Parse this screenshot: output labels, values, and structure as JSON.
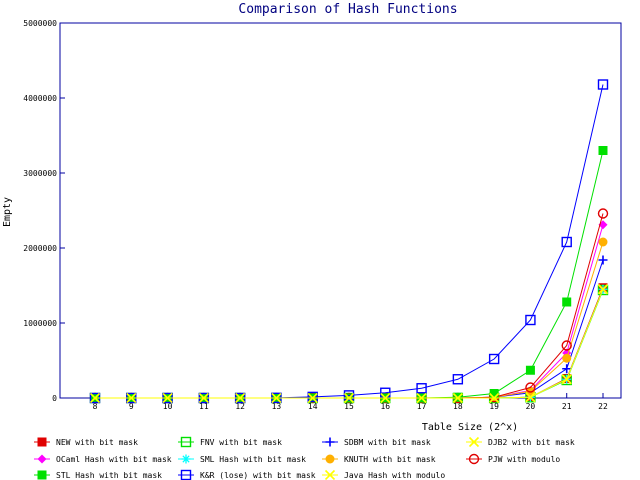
{
  "chart_data": {
    "type": "line",
    "title": "Comparison of Hash Functions",
    "xlabel": "Table Size (2^x)",
    "ylabel": "Empty",
    "x": [
      8,
      9,
      10,
      11,
      12,
      13,
      14,
      15,
      16,
      17,
      18,
      19,
      20,
      21,
      22
    ],
    "x_tick_labels": [
      "8",
      "9",
      "10",
      "11",
      "12",
      "13",
      "14",
      "15",
      "16",
      "17",
      "18",
      "19",
      "20",
      "21",
      "22"
    ],
    "y_ticks": [
      0,
      1000000,
      2000000,
      3000000,
      4000000,
      5000000
    ],
    "y_tick_labels": [
      "0",
      "1000000",
      "2000000",
      "3000000",
      "4000000",
      "5000000"
    ],
    "ylim": [
      0,
      5000000
    ],
    "legend_placement": "bottom",
    "series": [
      {
        "name": "NEW with bit mask",
        "color": "#e00000",
        "marker": "filled-square",
        "values": [
          0,
          0,
          0,
          0,
          0,
          0,
          0,
          0,
          0,
          0,
          0,
          0,
          10000,
          260000,
          1470000
        ]
      },
      {
        "name": "FNV with bit mask",
        "color": "#00e000",
        "marker": "open-square",
        "values": [
          0,
          0,
          0,
          0,
          0,
          0,
          0,
          0,
          0,
          0,
          0,
          0,
          10000,
          240000,
          1440000
        ]
      },
      {
        "name": "SDBM with bit mask",
        "color": "#0000ff",
        "marker": "plus",
        "values": [
          0,
          0,
          0,
          0,
          0,
          0,
          0,
          0,
          0,
          0,
          0,
          10000,
          70000,
          390000,
          1840000
        ]
      },
      {
        "name": "DJB2 with bit mask",
        "color": "#ffff00",
        "marker": "cross",
        "values": [
          0,
          0,
          0,
          0,
          0,
          0,
          0,
          0,
          0,
          0,
          0,
          0,
          10000,
          250000,
          1450000
        ]
      },
      {
        "name": "OCaml Hash with bit mask",
        "color": "#ff00ff",
        "marker": "filled-diamond",
        "values": [
          0,
          0,
          0,
          0,
          0,
          0,
          0,
          0,
          0,
          0,
          0,
          10000,
          100000,
          600000,
          2310000
        ]
      },
      {
        "name": "SML Hash with bit mask",
        "color": "#00ffff",
        "marker": "star",
        "values": [
          0,
          0,
          0,
          0,
          0,
          0,
          0,
          0,
          0,
          0,
          0,
          0,
          10000,
          250000,
          1450000
        ]
      },
      {
        "name": "KNUTH with bit mask",
        "color": "#ffb000",
        "marker": "filled-circle",
        "values": [
          0,
          0,
          0,
          0,
          0,
          0,
          0,
          0,
          0,
          0,
          0,
          10000,
          90000,
          530000,
          2080000
        ]
      },
      {
        "name": "PJW with modulo",
        "color": "#e00000",
        "marker": "open-circle",
        "values": [
          0,
          0,
          0,
          0,
          0,
          0,
          0,
          0,
          0,
          0,
          0,
          10000,
          140000,
          700000,
          2460000
        ]
      },
      {
        "name": "STL Hash with bit mask",
        "color": "#00e000",
        "marker": "filled-square",
        "values": [
          0,
          0,
          0,
          0,
          0,
          0,
          0,
          0,
          0,
          0,
          10000,
          60000,
          370000,
          1280000,
          3300000
        ]
      },
      {
        "name": "K&R (lose) with bit mask",
        "color": "#0000ff",
        "marker": "open-square",
        "values": [
          0,
          0,
          0,
          0,
          0,
          2000,
          15000,
          35000,
          70000,
          130000,
          250000,
          520000,
          1040000,
          2080000,
          4180000
        ]
      },
      {
        "name": "Java Hash with modulo",
        "color": "#ffff00",
        "marker": "cross",
        "values": [
          0,
          0,
          0,
          0,
          0,
          0,
          0,
          0,
          0,
          0,
          0,
          0,
          10000,
          250000,
          1450000
        ]
      }
    ]
  }
}
